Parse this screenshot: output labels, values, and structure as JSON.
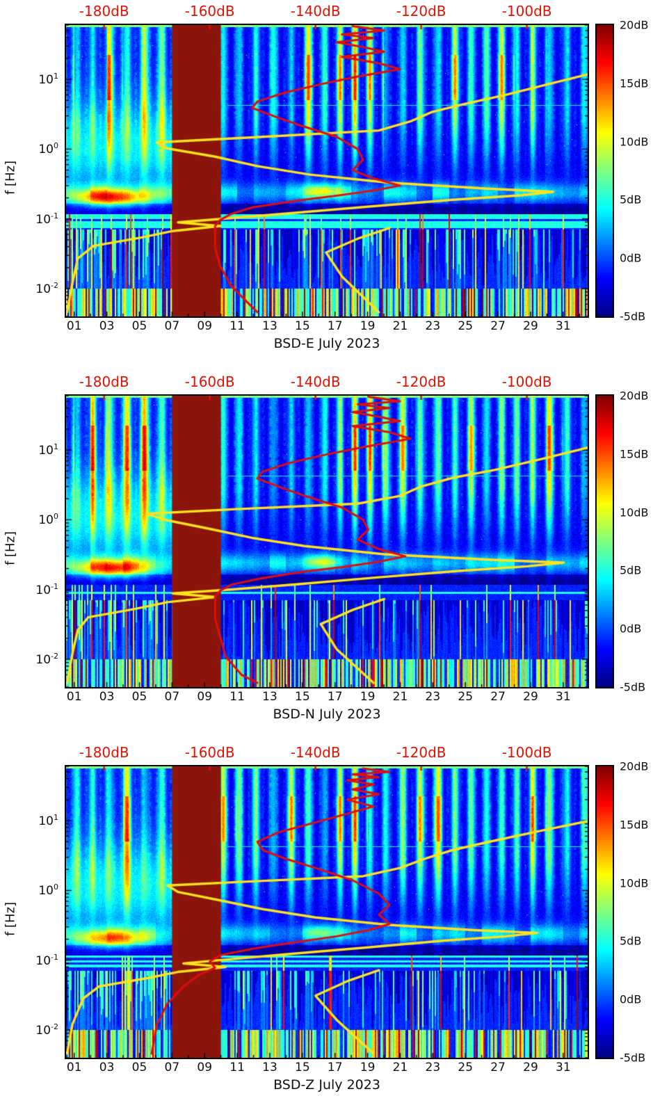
{
  "figure": {
    "top_axis": {
      "color": "#e61000",
      "db_range": [
        -187.2,
        -88.5
      ],
      "ticks": [
        {
          "label": "-180dB",
          "value_db": -180
        },
        {
          "label": "-160dB",
          "value_db": -160
        },
        {
          "label": "-140dB",
          "value_db": -140
        },
        {
          "label": "-120dB",
          "value_db": -120
        },
        {
          "label": "-100dB",
          "value_db": -100
        }
      ]
    },
    "x_axis": {
      "day_range": [
        0.5,
        32.5
      ],
      "ticks": [
        {
          "label": "01",
          "day": 1
        },
        {
          "label": "03",
          "day": 3
        },
        {
          "label": "05",
          "day": 5
        },
        {
          "label": "07",
          "day": 7
        },
        {
          "label": "09",
          "day": 9
        },
        {
          "label": "11",
          "day": 11
        },
        {
          "label": "13",
          "day": 13
        },
        {
          "label": "15",
          "day": 15
        },
        {
          "label": "17",
          "day": 17
        },
        {
          "label": "19",
          "day": 19
        },
        {
          "label": "21",
          "day": 21
        },
        {
          "label": "23",
          "day": 23
        },
        {
          "label": "25",
          "day": 25
        },
        {
          "label": "27",
          "day": 27
        },
        {
          "label": "29",
          "day": 29
        },
        {
          "label": "31",
          "day": 31
        }
      ]
    },
    "y_axis": {
      "label": "f [Hz]",
      "scale": "log",
      "freq_range_hz": [
        0.004,
        60
      ],
      "ticks": [
        {
          "mantissa": "10",
          "exp": "1",
          "value_hz": 10
        },
        {
          "mantissa": "10",
          "exp": "0",
          "value_hz": 1
        },
        {
          "mantissa": "10",
          "exp": "-1",
          "value_hz": 0.1
        },
        {
          "mantissa": "10",
          "exp": "-2",
          "value_hz": 0.01
        }
      ]
    },
    "colorbar": {
      "colormap": "jet",
      "range_db": [
        -5,
        20
      ],
      "ticks": [
        {
          "label": "20dB",
          "value_db": 20
        },
        {
          "label": "15dB",
          "value_db": 15
        },
        {
          "label": "10dB",
          "value_db": 10
        },
        {
          "label": "5dB",
          "value_db": 5
        },
        {
          "label": "0dB",
          "value_db": 0
        },
        {
          "label": "-5dB",
          "value_db": -5
        }
      ]
    }
  },
  "chart_data": [
    {
      "type": "heatmap",
      "subtype": "spectrogram",
      "title": "BSD-E July 2023",
      "data_note": "Daily-striped PPSD spectrogram, values -5dB..20dB (jet); solid dark-red masked data gap near days 7-10; yellow and red PSD-vs-frequency profile curves plotted against the top dB axis.",
      "masked_band_days": [
        7.0,
        10.0
      ],
      "microseism_gain": 1.0,
      "seed": 11,
      "overlays": [
        {
          "name": "yellow-psd-curve",
          "color": "#ffe21c",
          "points_db_hz": [
            [
              -88,
              12
            ],
            [
              -96,
              8.5
            ],
            [
              -104,
              6
            ],
            [
              -112,
              4.4
            ],
            [
              -118,
              3.4
            ],
            [
              -122,
              2.5
            ],
            [
              -128,
              1.85
            ],
            [
              -150,
              1.5
            ],
            [
              -170,
              1.25
            ],
            [
              -168,
              1.02
            ],
            [
              -159,
              0.78
            ],
            [
              -151,
              0.57
            ],
            [
              -141,
              0.43
            ],
            [
              -126,
              0.33
            ],
            [
              -107,
              0.27
            ],
            [
              -95,
              0.245
            ],
            [
              -101,
              0.218
            ],
            [
              -114,
              0.188
            ],
            [
              -129,
              0.152
            ],
            [
              -145,
              0.12
            ],
            [
              -157,
              0.101
            ],
            [
              -166,
              0.089
            ],
            [
              -158,
              0.079
            ],
            [
              -167,
              0.067
            ],
            [
              -173,
              0.054
            ],
            [
              -182,
              0.041
            ],
            [
              -185,
              0.027
            ],
            [
              -186,
              0.012
            ],
            [
              -187,
              0.0046
            ]
          ]
        },
        {
          "name": "yellow-psd-branch",
          "color": "#ffe21c",
          "points_db_hz": [
            [
              -126,
              0.074
            ],
            [
              -132,
              0.052
            ],
            [
              -138,
              0.033
            ],
            [
              -135,
              0.015
            ],
            [
              -128,
              0.0046
            ]
          ]
        },
        {
          "name": "red-psd-curve",
          "color": "#e00d0d",
          "points_db_hz": [
            [
              -133,
              58
            ],
            [
              -127,
              50
            ],
            [
              -135,
              44
            ],
            [
              -129,
              39
            ],
            [
              -136,
              34
            ],
            [
              -131,
              29
            ],
            [
              -127,
              25
            ],
            [
              -135,
              21
            ],
            [
              -128,
              17
            ],
            [
              -124,
              14
            ],
            [
              -132,
              11
            ],
            [
              -139,
              8.5
            ],
            [
              -146,
              6.4
            ],
            [
              -151,
              4.8
            ],
            [
              -152,
              3.9
            ],
            [
              -148,
              3.0
            ],
            [
              -143,
              2.2
            ],
            [
              -136,
              1.5
            ],
            [
              -132,
              1.0
            ],
            [
              -131,
              0.7
            ],
            [
              -133,
              0.5
            ],
            [
              -129,
              0.38
            ],
            [
              -124,
              0.3
            ],
            [
              -129,
              0.255
            ],
            [
              -136,
              0.215
            ],
            [
              -143,
              0.185
            ],
            [
              -152,
              0.146
            ],
            [
              -156,
              0.117
            ],
            [
              -158,
              0.097
            ],
            [
              -159,
              0.079
            ],
            [
              -159,
              0.058
            ],
            [
              -159,
              0.038
            ],
            [
              -158,
              0.021
            ],
            [
              -156,
              0.011
            ],
            [
              -153,
              0.0065
            ],
            [
              -151,
              0.0046
            ]
          ]
        }
      ]
    },
    {
      "type": "heatmap",
      "subtype": "spectrogram",
      "title": "BSD-N July 2023",
      "data_note": "Same layout as BSD-E panel; north component.",
      "masked_band_days": [
        7.0,
        10.0
      ],
      "microseism_gain": 1.0,
      "seed": 22,
      "overlays": [
        {
          "name": "yellow-psd-curve",
          "color": "#ffe21c",
          "points_db_hz": [
            [
              -88,
              11
            ],
            [
              -97,
              7.5
            ],
            [
              -106,
              5.2
            ],
            [
              -114,
              4.0
            ],
            [
              -120,
              3.0
            ],
            [
              -124,
              2.2
            ],
            [
              -132,
              1.7
            ],
            [
              -155,
              1.42
            ],
            [
              -172,
              1.22
            ],
            [
              -168,
              0.98
            ],
            [
              -160,
              0.74
            ],
            [
              -152,
              0.55
            ],
            [
              -142,
              0.42
            ],
            [
              -127,
              0.32
            ],
            [
              -106,
              0.265
            ],
            [
              -93,
              0.243
            ],
            [
              -100,
              0.215
            ],
            [
              -113,
              0.185
            ],
            [
              -128,
              0.15
            ],
            [
              -144,
              0.118
            ],
            [
              -156,
              0.1
            ],
            [
              -167,
              0.088
            ],
            [
              -159,
              0.078
            ],
            [
              -168,
              0.066
            ],
            [
              -174,
              0.053
            ],
            [
              -183,
              0.04
            ],
            [
              -185,
              0.026
            ],
            [
              -186,
              0.012
            ],
            [
              -187,
              0.0046
            ]
          ]
        },
        {
          "name": "yellow-psd-branch",
          "color": "#ffe21c",
          "points_db_hz": [
            [
              -127,
              0.073
            ],
            [
              -133,
              0.051
            ],
            [
              -139,
              0.032
            ],
            [
              -136,
              0.014
            ],
            [
              -129,
              0.0046
            ]
          ]
        },
        {
          "name": "red-psd-curve",
          "color": "#e00d0d",
          "points_db_hz": [
            [
              -130,
              58
            ],
            [
              -124,
              50
            ],
            [
              -132,
              45
            ],
            [
              -126,
              40
            ],
            [
              -133,
              35
            ],
            [
              -128,
              30
            ],
            [
              -124,
              26
            ],
            [
              -133,
              22
            ],
            [
              -126,
              18
            ],
            [
              -122,
              14.5
            ],
            [
              -131,
              11
            ],
            [
              -138,
              8.6
            ],
            [
              -145,
              6.5
            ],
            [
              -150,
              4.9
            ],
            [
              -151,
              3.9
            ],
            [
              -147,
              3.0
            ],
            [
              -142,
              2.2
            ],
            [
              -135,
              1.5
            ],
            [
              -131,
              1.0
            ],
            [
              -130,
              0.72
            ],
            [
              -132,
              0.52
            ],
            [
              -128,
              0.38
            ],
            [
              -123,
              0.3
            ],
            [
              -128,
              0.25
            ],
            [
              -135,
              0.21
            ],
            [
              -142,
              0.182
            ],
            [
              -150,
              0.146
            ],
            [
              -156,
              0.117
            ],
            [
              -158,
              0.097
            ],
            [
              -159,
              0.079
            ],
            [
              -159,
              0.058
            ],
            [
              -159,
              0.038
            ],
            [
              -158,
              0.021
            ],
            [
              -157,
              0.011
            ],
            [
              -154,
              0.006
            ],
            [
              -151,
              0.0046
            ]
          ]
        }
      ]
    },
    {
      "type": "heatmap",
      "subtype": "spectrogram",
      "title": "BSD-Z July 2023",
      "data_note": "Same layout; vertical component, weaker secondary-microseism hot spot.",
      "masked_band_days": [
        7.0,
        10.0
      ],
      "microseism_gain": 0.8,
      "seed": 33,
      "overlays": [
        {
          "name": "yellow-psd-curve",
          "color": "#ffe21c",
          "points_db_hz": [
            [
              -88,
              10
            ],
            [
              -98,
              7
            ],
            [
              -107,
              5
            ],
            [
              -114,
              3.8
            ],
            [
              -119,
              2.9
            ],
            [
              -124,
              2.1
            ],
            [
              -131,
              1.6
            ],
            [
              -152,
              1.35
            ],
            [
              -168,
              1.18
            ],
            [
              -166,
              0.95
            ],
            [
              -158,
              0.72
            ],
            [
              -150,
              0.54
            ],
            [
              -140,
              0.41
            ],
            [
              -126,
              0.32
            ],
            [
              -110,
              0.27
            ],
            [
              -98,
              0.247
            ],
            [
              -104,
              0.22
            ],
            [
              -116,
              0.19
            ],
            [
              -130,
              0.153
            ],
            [
              -146,
              0.121
            ],
            [
              -157,
              0.102
            ],
            [
              -165,
              0.09
            ],
            [
              -157,
              0.08
            ],
            [
              -166,
              0.068
            ],
            [
              -172,
              0.055
            ],
            [
              -181,
              0.042
            ],
            [
              -184,
              0.028
            ],
            [
              -186,
              0.012
            ],
            [
              -187,
              0.0046
            ]
          ]
        },
        {
          "name": "yellow-psd-branch",
          "color": "#ffe21c",
          "points_db_hz": [
            [
              -128,
              0.072
            ],
            [
              -134,
              0.05
            ],
            [
              -140,
              0.031
            ],
            [
              -136,
              0.014
            ],
            [
              -129,
              0.0046
            ]
          ]
        },
        {
          "name": "red-psd-curve",
          "color": "#e00d0d",
          "points_db_hz": [
            [
              -131,
              56
            ],
            [
              -126,
              50
            ],
            [
              -133,
              46
            ],
            [
              -128,
              42
            ],
            [
              -134,
              38
            ],
            [
              -129,
              33
            ],
            [
              -133,
              28
            ],
            [
              -128,
              24
            ],
            [
              -134,
              20
            ],
            [
              -129,
              16
            ],
            [
              -135,
              12
            ],
            [
              -141,
              9
            ],
            [
              -147,
              6.8
            ],
            [
              -151,
              5.0
            ],
            [
              -150,
              3.8
            ],
            [
              -146,
              2.9
            ],
            [
              -140,
              2.1
            ],
            [
              -133,
              1.4
            ],
            [
              -128,
              0.9
            ],
            [
              -126,
              0.62
            ],
            [
              -128,
              0.45
            ],
            [
              -126,
              0.33
            ],
            [
              -130,
              0.27
            ],
            [
              -136,
              0.22
            ],
            [
              -143,
              0.185
            ],
            [
              -151,
              0.15
            ],
            [
              -158,
              0.118
            ],
            [
              -160,
              0.096
            ],
            [
              -159,
              0.078
            ],
            [
              -162,
              0.062
            ],
            [
              -165,
              0.042
            ],
            [
              -168,
              0.024
            ],
            [
              -170,
              0.012
            ],
            [
              -171,
              0.0046
            ]
          ]
        }
      ]
    }
  ]
}
